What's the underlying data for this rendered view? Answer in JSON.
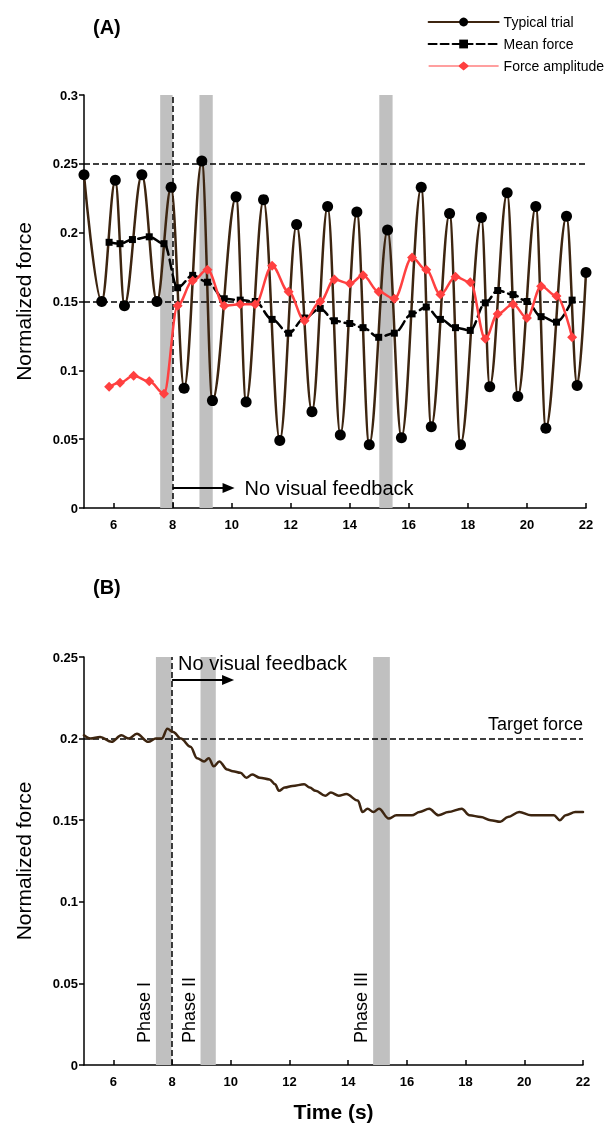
{
  "chart_data": [
    {
      "type": "line",
      "title": "(A)",
      "ylabel": "Normalized force",
      "series": [
        {
          "name": "Typical trial",
          "color": "#3d2510",
          "marker": "circle",
          "line_style": "solid",
          "x": [
            5.0,
            5.6,
            6.06,
            6.37,
            6.96,
            7.47,
            7.95,
            8.39,
            8.99,
            9.35,
            10.15,
            10.49,
            11.08,
            11.63,
            12.2,
            12.72,
            13.25,
            13.68,
            14.24,
            14.66,
            15.28,
            15.75,
            16.42,
            16.76,
            17.38,
            17.75,
            18.46,
            18.74,
            19.33,
            19.69,
            20.3,
            20.64,
            21.34,
            21.7,
            22.0
          ],
          "values": [
            0.242,
            0.15,
            0.238,
            0.147,
            0.242,
            0.15,
            0.233,
            0.087,
            0.252,
            0.078,
            0.226,
            0.077,
            0.224,
            0.049,
            0.206,
            0.07,
            0.219,
            0.053,
            0.215,
            0.046,
            0.202,
            0.051,
            0.233,
            0.059,
            0.214,
            0.046,
            0.211,
            0.088,
            0.229,
            0.081,
            0.219,
            0.058,
            0.212,
            0.089,
            0.171
          ]
        },
        {
          "name": "Mean force",
          "color": "#000000",
          "marker": "square",
          "line_style": "dashed",
          "x": [
            5.85,
            6.22,
            6.64,
            7.21,
            7.71,
            8.17,
            8.68,
            9.18,
            9.75,
            10.29,
            10.8,
            11.37,
            11.93,
            12.47,
            13.0,
            13.48,
            14.0,
            14.45,
            14.98,
            15.51,
            16.11,
            16.59,
            17.07,
            17.58,
            18.08,
            18.59,
            19.01,
            19.53,
            20.0,
            20.48,
            21.0,
            21.53
          ],
          "values": [
            0.193,
            0.192,
            0.195,
            0.197,
            0.192,
            0.16,
            0.169,
            0.164,
            0.152,
            0.151,
            0.15,
            0.137,
            0.127,
            0.138,
            0.145,
            0.136,
            0.134,
            0.131,
            0.124,
            0.127,
            0.141,
            0.146,
            0.137,
            0.131,
            0.129,
            0.149,
            0.158,
            0.155,
            0.15,
            0.139,
            0.135,
            0.151
          ]
        },
        {
          "name": "Force amplitude",
          "color": "#ff4040",
          "marker": "diamond",
          "line_style": "solid",
          "x": [
            5.85,
            6.22,
            6.68,
            7.21,
            7.71,
            8.17,
            8.68,
            9.18,
            9.75,
            10.29,
            10.8,
            11.37,
            11.93,
            12.47,
            13.0,
            13.48,
            14.0,
            14.45,
            14.98,
            15.51,
            16.11,
            16.59,
            17.07,
            17.58,
            18.08,
            18.59,
            19.01,
            19.53,
            20.0,
            20.48,
            21.0,
            21.53
          ],
          "values": [
            0.088,
            0.091,
            0.096,
            0.092,
            0.083,
            0.147,
            0.165,
            0.173,
            0.147,
            0.148,
            0.148,
            0.176,
            0.157,
            0.136,
            0.15,
            0.166,
            0.163,
            0.169,
            0.157,
            0.152,
            0.182,
            0.173,
            0.155,
            0.168,
            0.164,
            0.123,
            0.141,
            0.148,
            0.138,
            0.161,
            0.154,
            0.124
          ]
        }
      ],
      "xlim": [
        5,
        22
      ],
      "xticks": [
        6,
        8,
        10,
        12,
        14,
        16,
        18,
        20,
        22
      ],
      "ylim": [
        0,
        0.3
      ],
      "yticks": [
        0,
        0.05,
        0.1,
        0.15,
        0.2,
        0.25,
        0.3
      ],
      "ref_lines": [
        {
          "axis": "y",
          "value": 0.25,
          "line_style": "dashed",
          "color": "#000000"
        },
        {
          "axis": "y",
          "value": 0.15,
          "line_style": "dashed",
          "color": "#000000"
        },
        {
          "axis": "x",
          "value": 8,
          "line_style": "dashed",
          "color": "#000000"
        }
      ],
      "bands": [
        {
          "axis": "x",
          "from": 7.58,
          "to": 8.0,
          "color": "#c0c0c0"
        },
        {
          "axis": "x",
          "from": 8.91,
          "to": 9.36,
          "color": "#c0c0c0"
        },
        {
          "axis": "x",
          "from": 15.0,
          "to": 15.45,
          "color": "#c0c0c0"
        }
      ],
      "annotations": [
        "No visual feedback"
      ],
      "legend": "top right",
      "grid": false
    },
    {
      "type": "line",
      "title": "(B)",
      "xlabel": "Time (s)",
      "ylabel": "Normalized force",
      "series": [
        {
          "color": "#3d2510",
          "marker": "none",
          "line_style": "solid",
          "x": [
            5.0,
            5.22,
            5.55,
            5.94,
            6.27,
            6.53,
            6.8,
            7.19,
            7.45,
            7.65,
            7.84,
            8.04,
            8.3,
            8.63,
            8.85,
            9.09,
            9.25,
            9.42,
            9.61,
            9.88,
            10.07,
            10.33,
            10.53,
            10.73,
            10.99,
            11.32,
            11.51,
            11.64,
            11.84,
            12.1,
            12.5,
            12.69,
            12.89,
            13.22,
            13.41,
            13.68,
            13.94,
            14.33,
            14.49,
            14.66,
            14.86,
            15.05,
            15.38,
            15.64,
            16.17,
            16.43,
            16.76,
            17.08,
            17.41,
            17.87,
            18.13,
            18.52,
            18.85,
            19.18,
            19.44,
            19.83,
            20.23,
            20.62,
            21.01,
            21.21,
            21.41,
            21.74,
            22.0
          ],
          "values": [
            0.202,
            0.2,
            0.201,
            0.198,
            0.202,
            0.2,
            0.203,
            0.198,
            0.2,
            0.2,
            0.206,
            0.204,
            0.2,
            0.195,
            0.188,
            0.186,
            0.188,
            0.183,
            0.186,
            0.181,
            0.18,
            0.179,
            0.176,
            0.178,
            0.176,
            0.175,
            0.172,
            0.168,
            0.17,
            0.171,
            0.172,
            0.17,
            0.168,
            0.165,
            0.167,
            0.165,
            0.166,
            0.162,
            0.155,
            0.157,
            0.155,
            0.157,
            0.151,
            0.153,
            0.153,
            0.155,
            0.157,
            0.153,
            0.155,
            0.157,
            0.153,
            0.152,
            0.15,
            0.149,
            0.152,
            0.155,
            0.153,
            0.153,
            0.153,
            0.15,
            0.153,
            0.155,
            0.155
          ]
        }
      ],
      "xlim": [
        5,
        22
      ],
      "xticks": [
        6,
        8,
        10,
        12,
        14,
        16,
        18,
        20,
        22
      ],
      "ylim": [
        0,
        0.25
      ],
      "yticks": [
        0,
        0.05,
        0.1,
        0.15,
        0.2,
        0.25
      ],
      "ref_lines": [
        {
          "axis": "y",
          "value": 0.2,
          "label": "Target force",
          "line_style": "dashed",
          "color": "#000000"
        },
        {
          "axis": "x",
          "value": 8,
          "line_style": "dashed",
          "color": "#000000"
        }
      ],
      "bands": [
        {
          "axis": "x",
          "from": 7.45,
          "to": 7.98,
          "label": "Phase I",
          "color": "#c0c0c0"
        },
        {
          "axis": "x",
          "from": 8.97,
          "to": 9.49,
          "label": "Phase II",
          "color": "#c0c0c0"
        },
        {
          "axis": "x",
          "from": 14.85,
          "to": 15.42,
          "label": "Phase III",
          "color": "#c0c0c0"
        }
      ],
      "annotations": [
        "No visual feedback"
      ],
      "legend": false,
      "grid": false
    }
  ]
}
